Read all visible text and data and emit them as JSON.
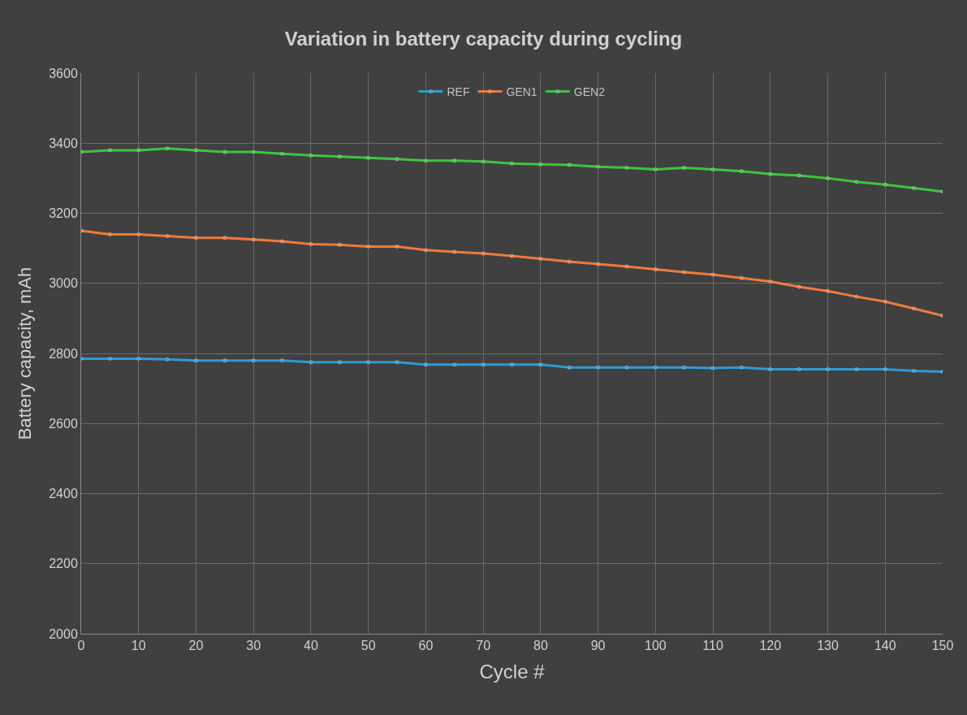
{
  "chart_data": {
    "type": "line",
    "title": "Variation in battery capacity during cycling",
    "xlabel": "Cycle #",
    "ylabel": "Battery capacity, mAh",
    "x": [
      0,
      5,
      10,
      15,
      20,
      25,
      30,
      35,
      40,
      45,
      50,
      55,
      60,
      65,
      70,
      75,
      80,
      85,
      90,
      95,
      100,
      105,
      110,
      115,
      120,
      125,
      130,
      135,
      140,
      145,
      150
    ],
    "series": [
      {
        "name": "REF",
        "color": "#2e9ad6",
        "values": [
          2785,
          2785,
          2785,
          2783,
          2780,
          2780,
          2780,
          2780,
          2775,
          2775,
          2775,
          2775,
          2768,
          2768,
          2768,
          2768,
          2768,
          2760,
          2760,
          2760,
          2760,
          2760,
          2758,
          2760,
          2755,
          2755,
          2755,
          2755,
          2755,
          2750,
          2748
        ]
      },
      {
        "name": "GEN1",
        "color": "#f07a3c",
        "values": [
          3150,
          3140,
          3140,
          3135,
          3130,
          3130,
          3125,
          3120,
          3112,
          3110,
          3105,
          3105,
          3095,
          3090,
          3085,
          3078,
          3070,
          3062,
          3055,
          3048,
          3040,
          3032,
          3025,
          3015,
          3005,
          2990,
          2978,
          2962,
          2948,
          2928,
          2908
        ]
      },
      {
        "name": "GEN2",
        "color": "#3fc43f",
        "values": [
          3375,
          3380,
          3380,
          3385,
          3380,
          3375,
          3375,
          3370,
          3365,
          3362,
          3358,
          3355,
          3350,
          3350,
          3348,
          3342,
          3340,
          3338,
          3333,
          3330,
          3325,
          3330,
          3325,
          3320,
          3312,
          3308,
          3300,
          3290,
          3282,
          3272,
          3262
        ]
      }
    ],
    "xlim": [
      0,
      150
    ],
    "xticks": [
      0,
      10,
      20,
      30,
      40,
      50,
      60,
      70,
      80,
      90,
      100,
      110,
      120,
      130,
      140,
      150
    ],
    "ylim": [
      2000,
      3600
    ],
    "yticks": [
      2000,
      2200,
      2400,
      2600,
      2800,
      3000,
      3200,
      3400,
      3600
    ],
    "grid": true,
    "legend": "top",
    "marker": "circle",
    "line_style": "solid"
  }
}
